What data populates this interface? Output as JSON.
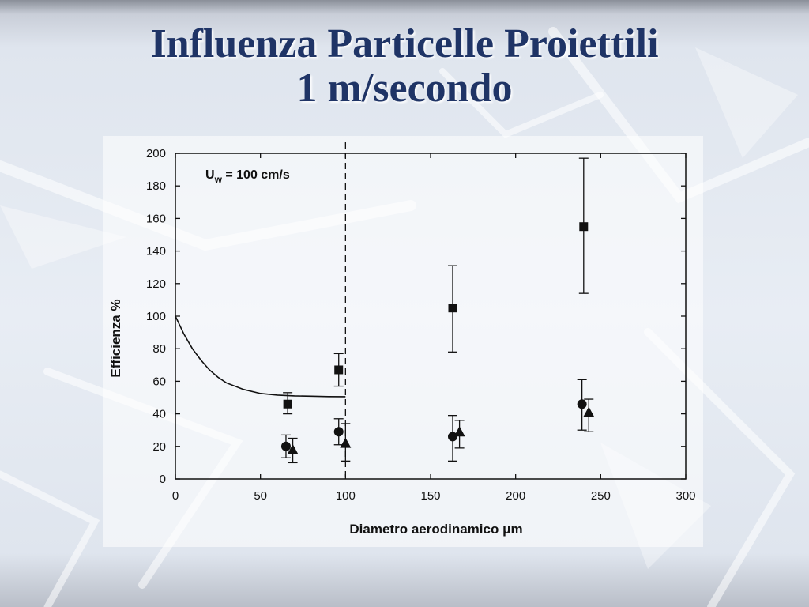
{
  "slide": {
    "title_line1": "Influenza Particelle Proiettili",
    "title_line2": "1 m/secondo"
  },
  "colors": {
    "title": "#1f3466",
    "ink": "#111111",
    "background": "#e8edf4"
  },
  "chart_data": {
    "type": "scatter",
    "xlabel": "Diametro aerodinamico μm",
    "ylabel": "Efficienza %",
    "xlim": [
      0,
      300
    ],
    "ylim": [
      0,
      200
    ],
    "xticks": [
      0,
      50,
      100,
      150,
      200,
      250,
      300
    ],
    "yticks": [
      0,
      20,
      40,
      60,
      80,
      100,
      120,
      140,
      160,
      180,
      200
    ],
    "annotation": {
      "main": "U",
      "sub": "w",
      "rest": " = 100 cm/s"
    },
    "reference_line_x": 100,
    "curve": [
      {
        "x": 0,
        "y": 100
      },
      {
        "x": 5,
        "y": 89
      },
      {
        "x": 10,
        "y": 80
      },
      {
        "x": 15,
        "y": 73
      },
      {
        "x": 20,
        "y": 67
      },
      {
        "x": 25,
        "y": 62.5
      },
      {
        "x": 30,
        "y": 59
      },
      {
        "x": 40,
        "y": 55
      },
      {
        "x": 50,
        "y": 52.5
      },
      {
        "x": 60,
        "y": 51.5
      },
      {
        "x": 70,
        "y": 51
      },
      {
        "x": 80,
        "y": 50.8
      },
      {
        "x": 90,
        "y": 50.6
      },
      {
        "x": 100,
        "y": 50.5
      }
    ],
    "series": [
      {
        "marker": "square",
        "points": [
          {
            "x": 66,
            "y": 46,
            "low": 40,
            "high": 53
          },
          {
            "x": 96,
            "y": 67,
            "low": 57,
            "high": 77
          },
          {
            "x": 163,
            "y": 105,
            "low": 78,
            "high": 131
          },
          {
            "x": 240,
            "y": 155,
            "low": 114,
            "high": 197
          }
        ]
      },
      {
        "marker": "circle",
        "points": [
          {
            "x": 65,
            "y": 20,
            "low": 13,
            "high": 27
          },
          {
            "x": 96,
            "y": 29,
            "low": 21,
            "high": 37
          },
          {
            "x": 163,
            "y": 26,
            "low": 11,
            "high": 39
          },
          {
            "x": 239,
            "y": 46,
            "low": 30,
            "high": 61
          }
        ]
      },
      {
        "marker": "triangle",
        "points": [
          {
            "x": 69,
            "y": 18,
            "low": 10,
            "high": 25
          },
          {
            "x": 100,
            "y": 22,
            "low": 11,
            "high": 34
          },
          {
            "x": 167,
            "y": 29,
            "low": 19,
            "high": 36
          },
          {
            "x": 243,
            "y": 41,
            "low": 29,
            "high": 49
          }
        ]
      }
    ]
  }
}
